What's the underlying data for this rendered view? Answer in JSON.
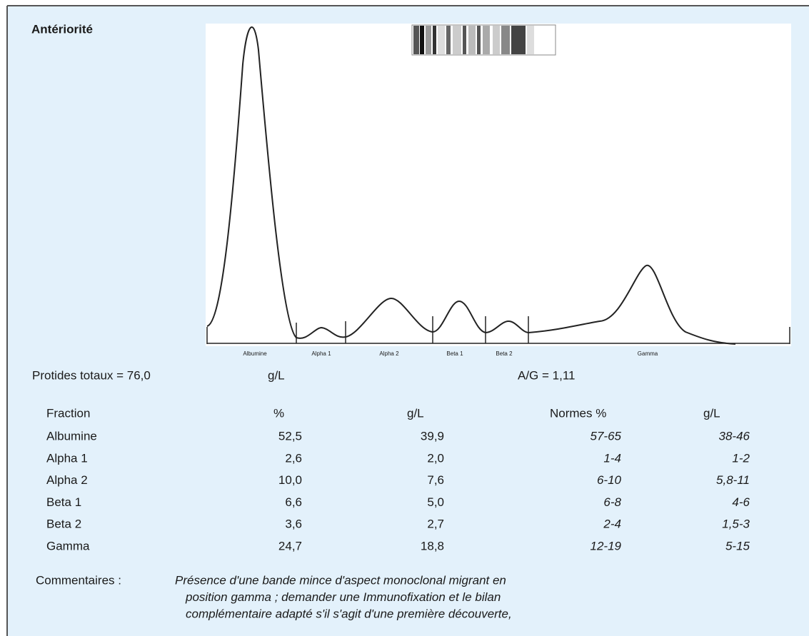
{
  "header": {
    "title": "Antériorité"
  },
  "densitogram": {
    "fractions": [
      "Albumine",
      "Alpha 1",
      "Alpha 2",
      "Beta 1",
      "Beta 2",
      "Gamma"
    ]
  },
  "summary": {
    "total": "Protides totaux = 76,0",
    "unit": "g/L",
    "ratio": "A/G = 1,11"
  },
  "table": {
    "columns": [
      "Fraction",
      "%",
      "g/L",
      "Normes %",
      "g/L"
    ],
    "rows": [
      [
        "Albumine",
        "52,5",
        "39,9",
        "57-65",
        "38-46"
      ],
      [
        "Alpha 1",
        "2,6",
        "2,0",
        "1-4",
        "1-2"
      ],
      [
        "Alpha 2",
        "10,0",
        "7,6",
        "6-10",
        "5,8-11"
      ],
      [
        "Beta 1",
        "6,6",
        "5,0",
        "6-8",
        "4-6"
      ],
      [
        "Beta 2",
        "3,6",
        "2,7",
        "2-4",
        "1,5-3"
      ],
      [
        "Gamma",
        "24,7",
        "18,8",
        "12-19",
        "5-15"
      ]
    ]
  },
  "comments": {
    "label": "Commentaires :",
    "lines": [
      "Présence d'une bande mince d'aspect monoclonal migrant en",
      "position gamma ; demander une Immunofixation et le bilan",
      "complémentaire adapté s'il s'agit d'une première découverte,"
    ]
  }
}
